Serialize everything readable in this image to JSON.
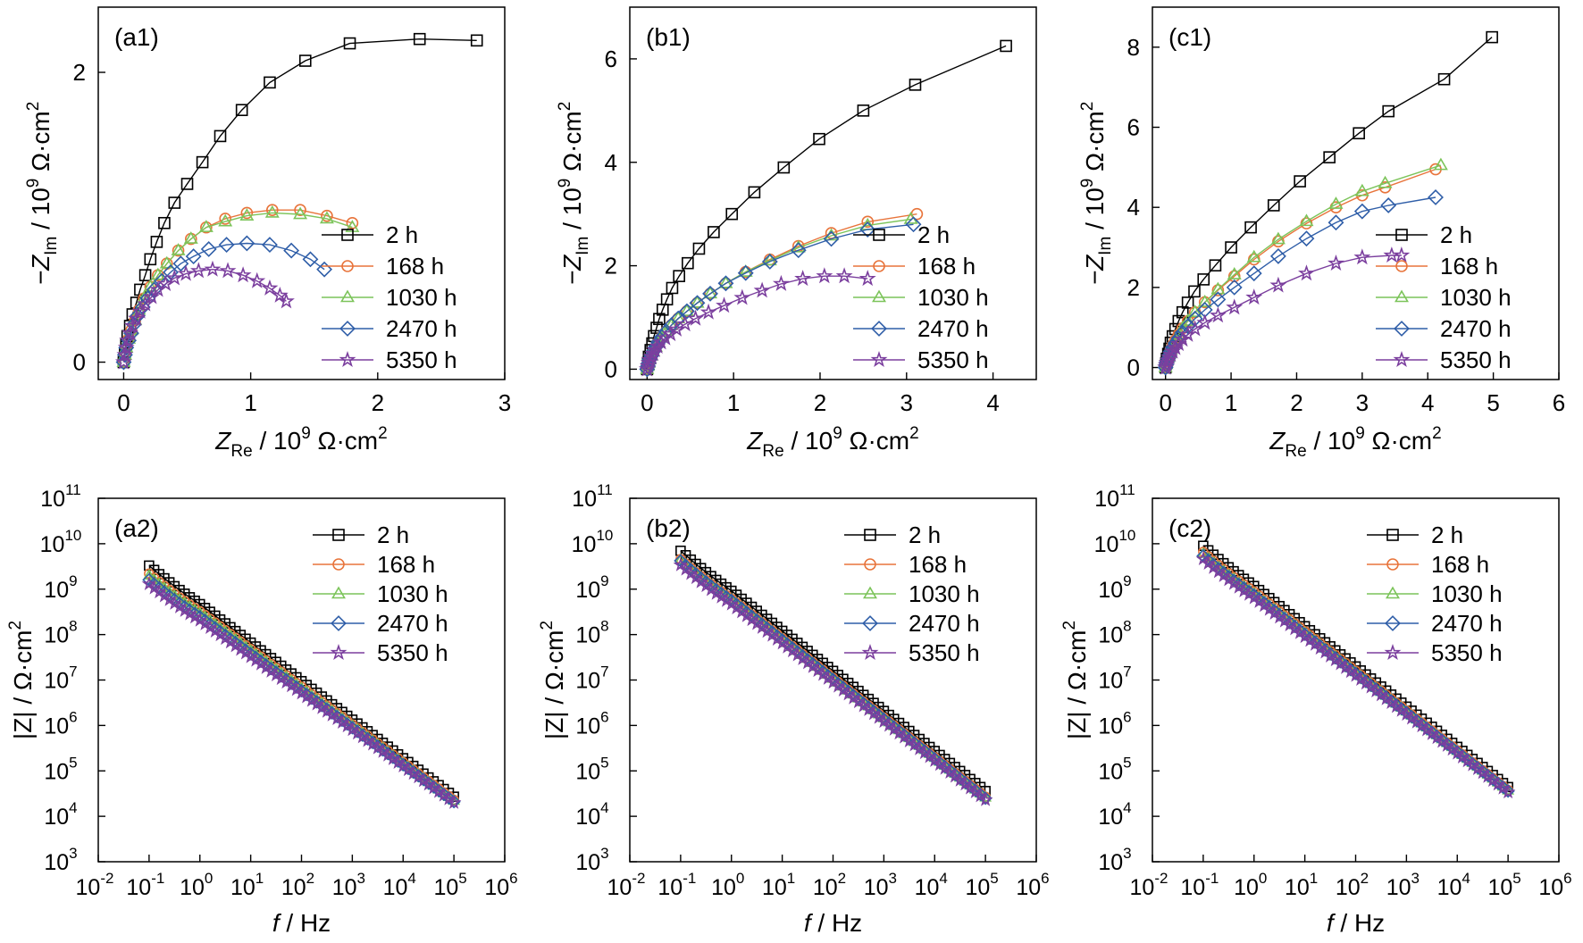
{
  "series_styles": [
    {
      "name": "2 h",
      "color": "#000000",
      "marker": "square"
    },
    {
      "name": "168 h",
      "color": "#e8743b",
      "marker": "circle"
    },
    {
      "name": "1030 h",
      "color": "#7cc45a",
      "marker": "triangle"
    },
    {
      "name": "2470 h",
      "color": "#2f5ea8",
      "marker": "diamond"
    },
    {
      "name": "5350 h",
      "color": "#7b3f9e",
      "marker": "star"
    }
  ],
  "chart_data": [
    {
      "type": "scatter",
      "panel_label": "(a1)",
      "xlabel_var": "Z",
      "xlabel_sub": "Re",
      "xlabel_rest": " / 10",
      "xlabel_sup": "9",
      "xlabel_unit": " Ω·cm",
      "xlabel_unit_sup": "2",
      "ylabel_var": "−Z",
      "ylabel_sub": "Im",
      "ylabel_rest": " / 10",
      "ylabel_sup": "9",
      "ylabel_unit": " Ω·cm",
      "ylabel_unit_sup": "2",
      "xlim": [
        -0.2,
        3.0
      ],
      "ylim": [
        -0.12,
        2.45
      ],
      "xticks": [
        0,
        1,
        2,
        3
      ],
      "yticks": [
        0,
        2
      ],
      "legend_position": "right",
      "series": [
        {
          "name": "2 h",
          "x": [
            0.0,
            0.01,
            0.02,
            0.03,
            0.05,
            0.07,
            0.1,
            0.13,
            0.17,
            0.21,
            0.26,
            0.32,
            0.4,
            0.5,
            0.62,
            0.76,
            0.93,
            1.15,
            1.43,
            1.78,
            2.33,
            2.78
          ],
          "y": [
            0.0,
            0.06,
            0.12,
            0.18,
            0.25,
            0.33,
            0.41,
            0.5,
            0.6,
            0.71,
            0.83,
            0.96,
            1.1,
            1.23,
            1.38,
            1.56,
            1.74,
            1.93,
            2.08,
            2.2,
            2.23,
            2.22
          ]
        },
        {
          "name": "168 h",
          "x": [
            0.0,
            0.01,
            0.02,
            0.04,
            0.06,
            0.09,
            0.12,
            0.16,
            0.21,
            0.27,
            0.34,
            0.43,
            0.53,
            0.65,
            0.8,
            0.97,
            1.17,
            1.39,
            1.6,
            1.8
          ],
          "y": [
            0.0,
            0.05,
            0.1,
            0.16,
            0.22,
            0.29,
            0.36,
            0.44,
            0.52,
            0.6,
            0.68,
            0.77,
            0.85,
            0.93,
            0.99,
            1.03,
            1.05,
            1.05,
            1.01,
            0.96
          ]
        },
        {
          "name": "1030 h",
          "x": [
            0.0,
            0.01,
            0.02,
            0.04,
            0.06,
            0.09,
            0.12,
            0.16,
            0.21,
            0.27,
            0.34,
            0.43,
            0.53,
            0.65,
            0.8,
            0.97,
            1.17,
            1.39,
            1.6,
            1.8
          ],
          "y": [
            0.0,
            0.05,
            0.1,
            0.16,
            0.22,
            0.29,
            0.36,
            0.44,
            0.52,
            0.6,
            0.68,
            0.77,
            0.85,
            0.93,
            0.97,
            1.01,
            1.03,
            1.02,
            0.99,
            0.93
          ]
        },
        {
          "name": "2470 h",
          "x": [
            0.0,
            0.01,
            0.02,
            0.04,
            0.06,
            0.08,
            0.11,
            0.15,
            0.19,
            0.24,
            0.3,
            0.37,
            0.45,
            0.55,
            0.67,
            0.81,
            0.97,
            1.15,
            1.32,
            1.47,
            1.58
          ],
          "y": [
            0.0,
            0.05,
            0.1,
            0.15,
            0.2,
            0.26,
            0.32,
            0.38,
            0.44,
            0.5,
            0.56,
            0.62,
            0.68,
            0.73,
            0.78,
            0.81,
            0.82,
            0.81,
            0.77,
            0.71,
            0.64
          ]
        },
        {
          "name": "5350 h",
          "x": [
            0.0,
            0.01,
            0.02,
            0.03,
            0.05,
            0.07,
            0.1,
            0.13,
            0.17,
            0.22,
            0.27,
            0.33,
            0.4,
            0.49,
            0.59,
            0.7,
            0.82,
            0.94,
            1.05,
            1.15,
            1.23,
            1.28
          ],
          "y": [
            0.0,
            0.05,
            0.1,
            0.15,
            0.2,
            0.25,
            0.3,
            0.35,
            0.4,
            0.45,
            0.5,
            0.54,
            0.58,
            0.61,
            0.63,
            0.64,
            0.63,
            0.6,
            0.56,
            0.51,
            0.46,
            0.42
          ]
        }
      ]
    },
    {
      "type": "scatter",
      "panel_label": "(b1)",
      "xlabel_var": "Z",
      "xlabel_sub": "Re",
      "xlabel_rest": " / 10",
      "xlabel_sup": "9",
      "xlabel_unit": " Ω·cm",
      "xlabel_unit_sup": "2",
      "ylabel_var": "−Z",
      "ylabel_sub": "Im",
      "ylabel_rest": " / 10",
      "ylabel_sup": "9",
      "ylabel_unit": " Ω·cm",
      "ylabel_unit_sup": "2",
      "xlim": [
        -0.2,
        4.5
      ],
      "ylim": [
        -0.2,
        7.0
      ],
      "xticks": [
        0,
        1,
        2,
        3,
        4
      ],
      "yticks": [
        0,
        2,
        4,
        6
      ],
      "legend_position": "right",
      "series": [
        {
          "name": "2 h",
          "x": [
            0.0,
            0.01,
            0.02,
            0.04,
            0.06,
            0.08,
            0.11,
            0.14,
            0.18,
            0.23,
            0.29,
            0.37,
            0.47,
            0.6,
            0.77,
            0.98,
            1.24,
            1.58,
            1.99,
            2.5,
            3.1,
            4.15
          ],
          "y": [
            0.0,
            0.12,
            0.24,
            0.37,
            0.5,
            0.64,
            0.8,
            0.97,
            1.15,
            1.35,
            1.57,
            1.8,
            2.05,
            2.33,
            2.65,
            3.0,
            3.42,
            3.9,
            4.45,
            5.0,
            5.5,
            6.25
          ]
        },
        {
          "name": "168 h",
          "x": [
            0.0,
            0.01,
            0.02,
            0.03,
            0.05,
            0.07,
            0.1,
            0.13,
            0.17,
            0.22,
            0.28,
            0.36,
            0.46,
            0.58,
            0.73,
            0.91,
            1.14,
            1.42,
            1.75,
            2.13,
            2.55,
            3.12
          ],
          "y": [
            0.0,
            0.06,
            0.12,
            0.19,
            0.26,
            0.34,
            0.43,
            0.52,
            0.62,
            0.73,
            0.85,
            0.98,
            1.12,
            1.28,
            1.46,
            1.66,
            1.88,
            2.12,
            2.38,
            2.63,
            2.85,
            3.0
          ]
        },
        {
          "name": "1030 h",
          "x": [
            0.0,
            0.01,
            0.02,
            0.03,
            0.05,
            0.07,
            0.1,
            0.13,
            0.17,
            0.22,
            0.28,
            0.36,
            0.46,
            0.58,
            0.73,
            0.91,
            1.14,
            1.42,
            1.75,
            2.13,
            2.55,
            3.05
          ],
          "y": [
            0.0,
            0.06,
            0.12,
            0.19,
            0.26,
            0.34,
            0.43,
            0.52,
            0.62,
            0.73,
            0.85,
            0.98,
            1.12,
            1.28,
            1.46,
            1.66,
            1.88,
            2.1,
            2.35,
            2.58,
            2.78,
            2.9
          ]
        },
        {
          "name": "2470 h",
          "x": [
            0.0,
            0.01,
            0.02,
            0.03,
            0.05,
            0.07,
            0.1,
            0.13,
            0.17,
            0.22,
            0.28,
            0.36,
            0.46,
            0.58,
            0.73,
            0.91,
            1.14,
            1.42,
            1.75,
            2.13,
            2.55,
            3.08
          ],
          "y": [
            0.0,
            0.06,
            0.12,
            0.19,
            0.26,
            0.34,
            0.43,
            0.52,
            0.62,
            0.73,
            0.85,
            0.98,
            1.12,
            1.28,
            1.46,
            1.66,
            1.86,
            2.08,
            2.3,
            2.52,
            2.7,
            2.8
          ]
        },
        {
          "name": "5350 h",
          "x": [
            0.0,
            0.01,
            0.02,
            0.03,
            0.05,
            0.07,
            0.09,
            0.12,
            0.16,
            0.21,
            0.27,
            0.34,
            0.44,
            0.56,
            0.71,
            0.89,
            1.1,
            1.33,
            1.55,
            1.8,
            2.05,
            2.28,
            2.55
          ],
          "y": [
            0.0,
            0.06,
            0.12,
            0.18,
            0.24,
            0.3,
            0.37,
            0.44,
            0.52,
            0.6,
            0.68,
            0.77,
            0.87,
            0.98,
            1.1,
            1.23,
            1.38,
            1.52,
            1.65,
            1.75,
            1.8,
            1.8,
            1.75
          ]
        }
      ]
    },
    {
      "type": "scatter",
      "panel_label": "(c1)",
      "xlabel_var": "Z",
      "xlabel_sub": "Re",
      "xlabel_rest": " / 10",
      "xlabel_sup": "9",
      "xlabel_unit": " Ω·cm",
      "xlabel_unit_sup": "2",
      "ylabel_var": "−Z",
      "ylabel_sub": "Im",
      "ylabel_rest": " / 10",
      "ylabel_sup": "9",
      "ylabel_unit": " Ω·cm",
      "ylabel_unit_sup": "2",
      "xlim": [
        -0.2,
        6.0
      ],
      "ylim": [
        -0.3,
        9.0
      ],
      "xticks": [
        0,
        1,
        2,
        3,
        4,
        5,
        6
      ],
      "yticks": [
        0,
        2,
        4,
        6,
        8
      ],
      "legend_position": "right",
      "series": [
        {
          "name": "2 h",
          "x": [
            0.0,
            0.01,
            0.02,
            0.04,
            0.06,
            0.08,
            0.11,
            0.15,
            0.2,
            0.26,
            0.34,
            0.44,
            0.58,
            0.76,
            1.0,
            1.3,
            1.65,
            2.05,
            2.5,
            2.95,
            3.4,
            4.25,
            4.98
          ],
          "y": [
            0.0,
            0.11,
            0.22,
            0.34,
            0.47,
            0.62,
            0.78,
            0.96,
            1.16,
            1.38,
            1.62,
            1.9,
            2.2,
            2.55,
            3.0,
            3.5,
            4.05,
            4.65,
            5.25,
            5.85,
            6.4,
            7.2,
            8.25
          ]
        },
        {
          "name": "168 h",
          "x": [
            0.0,
            0.01,
            0.02,
            0.04,
            0.06,
            0.08,
            0.11,
            0.15,
            0.2,
            0.26,
            0.34,
            0.45,
            0.6,
            0.8,
            1.05,
            1.35,
            1.72,
            2.15,
            2.6,
            3.0,
            3.35,
            4.12
          ],
          "y": [
            0.0,
            0.08,
            0.16,
            0.25,
            0.35,
            0.45,
            0.56,
            0.68,
            0.82,
            0.98,
            1.16,
            1.38,
            1.63,
            1.93,
            2.28,
            2.7,
            3.15,
            3.6,
            4.0,
            4.3,
            4.5,
            4.95
          ]
        },
        {
          "name": "1030 h",
          "x": [
            0.0,
            0.01,
            0.02,
            0.04,
            0.06,
            0.08,
            0.11,
            0.15,
            0.2,
            0.26,
            0.34,
            0.45,
            0.6,
            0.8,
            1.05,
            1.35,
            1.72,
            2.15,
            2.6,
            3.0,
            3.35,
            4.2
          ],
          "y": [
            0.0,
            0.08,
            0.16,
            0.25,
            0.35,
            0.45,
            0.56,
            0.68,
            0.82,
            0.98,
            1.16,
            1.38,
            1.63,
            1.95,
            2.32,
            2.75,
            3.2,
            3.65,
            4.08,
            4.4,
            4.6,
            5.05
          ]
        },
        {
          "name": "2470 h",
          "x": [
            0.0,
            0.01,
            0.02,
            0.04,
            0.06,
            0.08,
            0.11,
            0.15,
            0.2,
            0.26,
            0.34,
            0.45,
            0.6,
            0.8,
            1.05,
            1.35,
            1.72,
            2.15,
            2.6,
            3.0,
            3.4,
            4.12
          ],
          "y": [
            0.0,
            0.07,
            0.14,
            0.22,
            0.31,
            0.4,
            0.5,
            0.61,
            0.73,
            0.87,
            1.03,
            1.22,
            1.44,
            1.7,
            2.0,
            2.35,
            2.78,
            3.22,
            3.62,
            3.9,
            4.05,
            4.25
          ]
        },
        {
          "name": "5350 h",
          "x": [
            0.0,
            0.01,
            0.02,
            0.04,
            0.06,
            0.08,
            0.11,
            0.15,
            0.2,
            0.26,
            0.34,
            0.45,
            0.6,
            0.8,
            1.05,
            1.35,
            1.72,
            2.15,
            2.6,
            3.0,
            3.45,
            3.6
          ],
          "y": [
            0.0,
            0.06,
            0.12,
            0.18,
            0.25,
            0.32,
            0.4,
            0.49,
            0.59,
            0.7,
            0.82,
            0.96,
            1.12,
            1.3,
            1.5,
            1.75,
            2.05,
            2.35,
            2.6,
            2.75,
            2.8,
            2.8
          ]
        }
      ]
    },
    {
      "type": "scatter",
      "panel_label": "(a2)",
      "xlabel_var": "f",
      "xlabel_rest": " / Hz",
      "ylabel_text": "|Z| / Ω·cm",
      "ylabel_sup": "2",
      "xscale": "log",
      "yscale": "log",
      "xlim": [
        0.01,
        1000000
      ],
      "ylim": [
        1000,
        100000000000
      ],
      "x_tick_exponents": [
        -2,
        -1,
        0,
        1,
        2,
        3,
        4,
        5,
        6
      ],
      "y_tick_exponents": [
        3,
        4,
        5,
        6,
        7,
        8,
        9,
        10,
        11
      ],
      "legend_position": "top-right",
      "f_range": [
        0.1,
        100000
      ],
      "points_per_decade": 10,
      "series": [
        {
          "name": "2 h",
          "Z_at_0.1Hz": 3300000000.0,
          "Z_at_1e5Hz": 27000
        },
        {
          "name": "168 h",
          "Z_at_0.1Hz": 2200000000.0,
          "Z_at_1e5Hz": 23000
        },
        {
          "name": "1030 h",
          "Z_at_0.1Hz": 2000000000.0,
          "Z_at_1e5Hz": 22000
        },
        {
          "name": "2470 h",
          "Z_at_0.1Hz": 1600000000.0,
          "Z_at_1e5Hz": 21000
        },
        {
          "name": "5350 h",
          "Z_at_0.1Hz": 1300000000.0,
          "Z_at_1e5Hz": 20000
        }
      ]
    },
    {
      "type": "scatter",
      "panel_label": "(b2)",
      "xlabel_var": "f",
      "xlabel_rest": " / Hz",
      "ylabel_text": "|Z| / Ω·cm",
      "ylabel_sup": "2",
      "xscale": "log",
      "yscale": "log",
      "xlim": [
        0.01,
        1000000
      ],
      "ylim": [
        1000,
        100000000000
      ],
      "x_tick_exponents": [
        -2,
        -1,
        0,
        1,
        2,
        3,
        4,
        5,
        6
      ],
      "y_tick_exponents": [
        3,
        4,
        5,
        6,
        7,
        8,
        9,
        10,
        11
      ],
      "legend_position": "top-right",
      "f_range": [
        0.1,
        100000
      ],
      "points_per_decade": 10,
      "series": [
        {
          "name": "2 h",
          "Z_at_0.1Hz": 7000000000.0,
          "Z_at_1e5Hz": 36000
        },
        {
          "name": "168 h",
          "Z_at_0.1Hz": 4600000000.0,
          "Z_at_1e5Hz": 27000
        },
        {
          "name": "1030 h",
          "Z_at_0.1Hz": 4400000000.0,
          "Z_at_1e5Hz": 26000
        },
        {
          "name": "2470 h",
          "Z_at_0.1Hz": 4200000000.0,
          "Z_at_1e5Hz": 25000
        },
        {
          "name": "5350 h",
          "Z_at_0.1Hz": 3400000000.0,
          "Z_at_1e5Hz": 23000
        }
      ]
    },
    {
      "type": "scatter",
      "panel_label": "(c2)",
      "xlabel_var": "f",
      "xlabel_rest": " / Hz",
      "ylabel_text": "|Z| / Ω·cm",
      "ylabel_sup": "2",
      "xscale": "log",
      "yscale": "log",
      "xlim": [
        0.01,
        1000000
      ],
      "ylim": [
        1000,
        100000000000
      ],
      "x_tick_exponents": [
        -2,
        -1,
        0,
        1,
        2,
        3,
        4,
        5,
        6
      ],
      "y_tick_exponents": [
        3,
        4,
        5,
        6,
        7,
        8,
        9,
        10,
        11
      ],
      "legend_position": "top-right",
      "f_range": [
        0.1,
        100000
      ],
      "points_per_decade": 10,
      "series": [
        {
          "name": "2 h",
          "Z_at_0.1Hz": 9000000000.0,
          "Z_at_1e5Hz": 44000
        },
        {
          "name": "168 h",
          "Z_at_0.1Hz": 6600000000.0,
          "Z_at_1e5Hz": 38000
        },
        {
          "name": "1030 h",
          "Z_at_0.1Hz": 6000000000.0,
          "Z_at_1e5Hz": 37000
        },
        {
          "name": "2470 h",
          "Z_at_0.1Hz": 5400000000.0,
          "Z_at_1e5Hz": 36000
        },
        {
          "name": "5350 h",
          "Z_at_0.1Hz": 4600000000.0,
          "Z_at_1e5Hz": 34000
        }
      ]
    }
  ]
}
